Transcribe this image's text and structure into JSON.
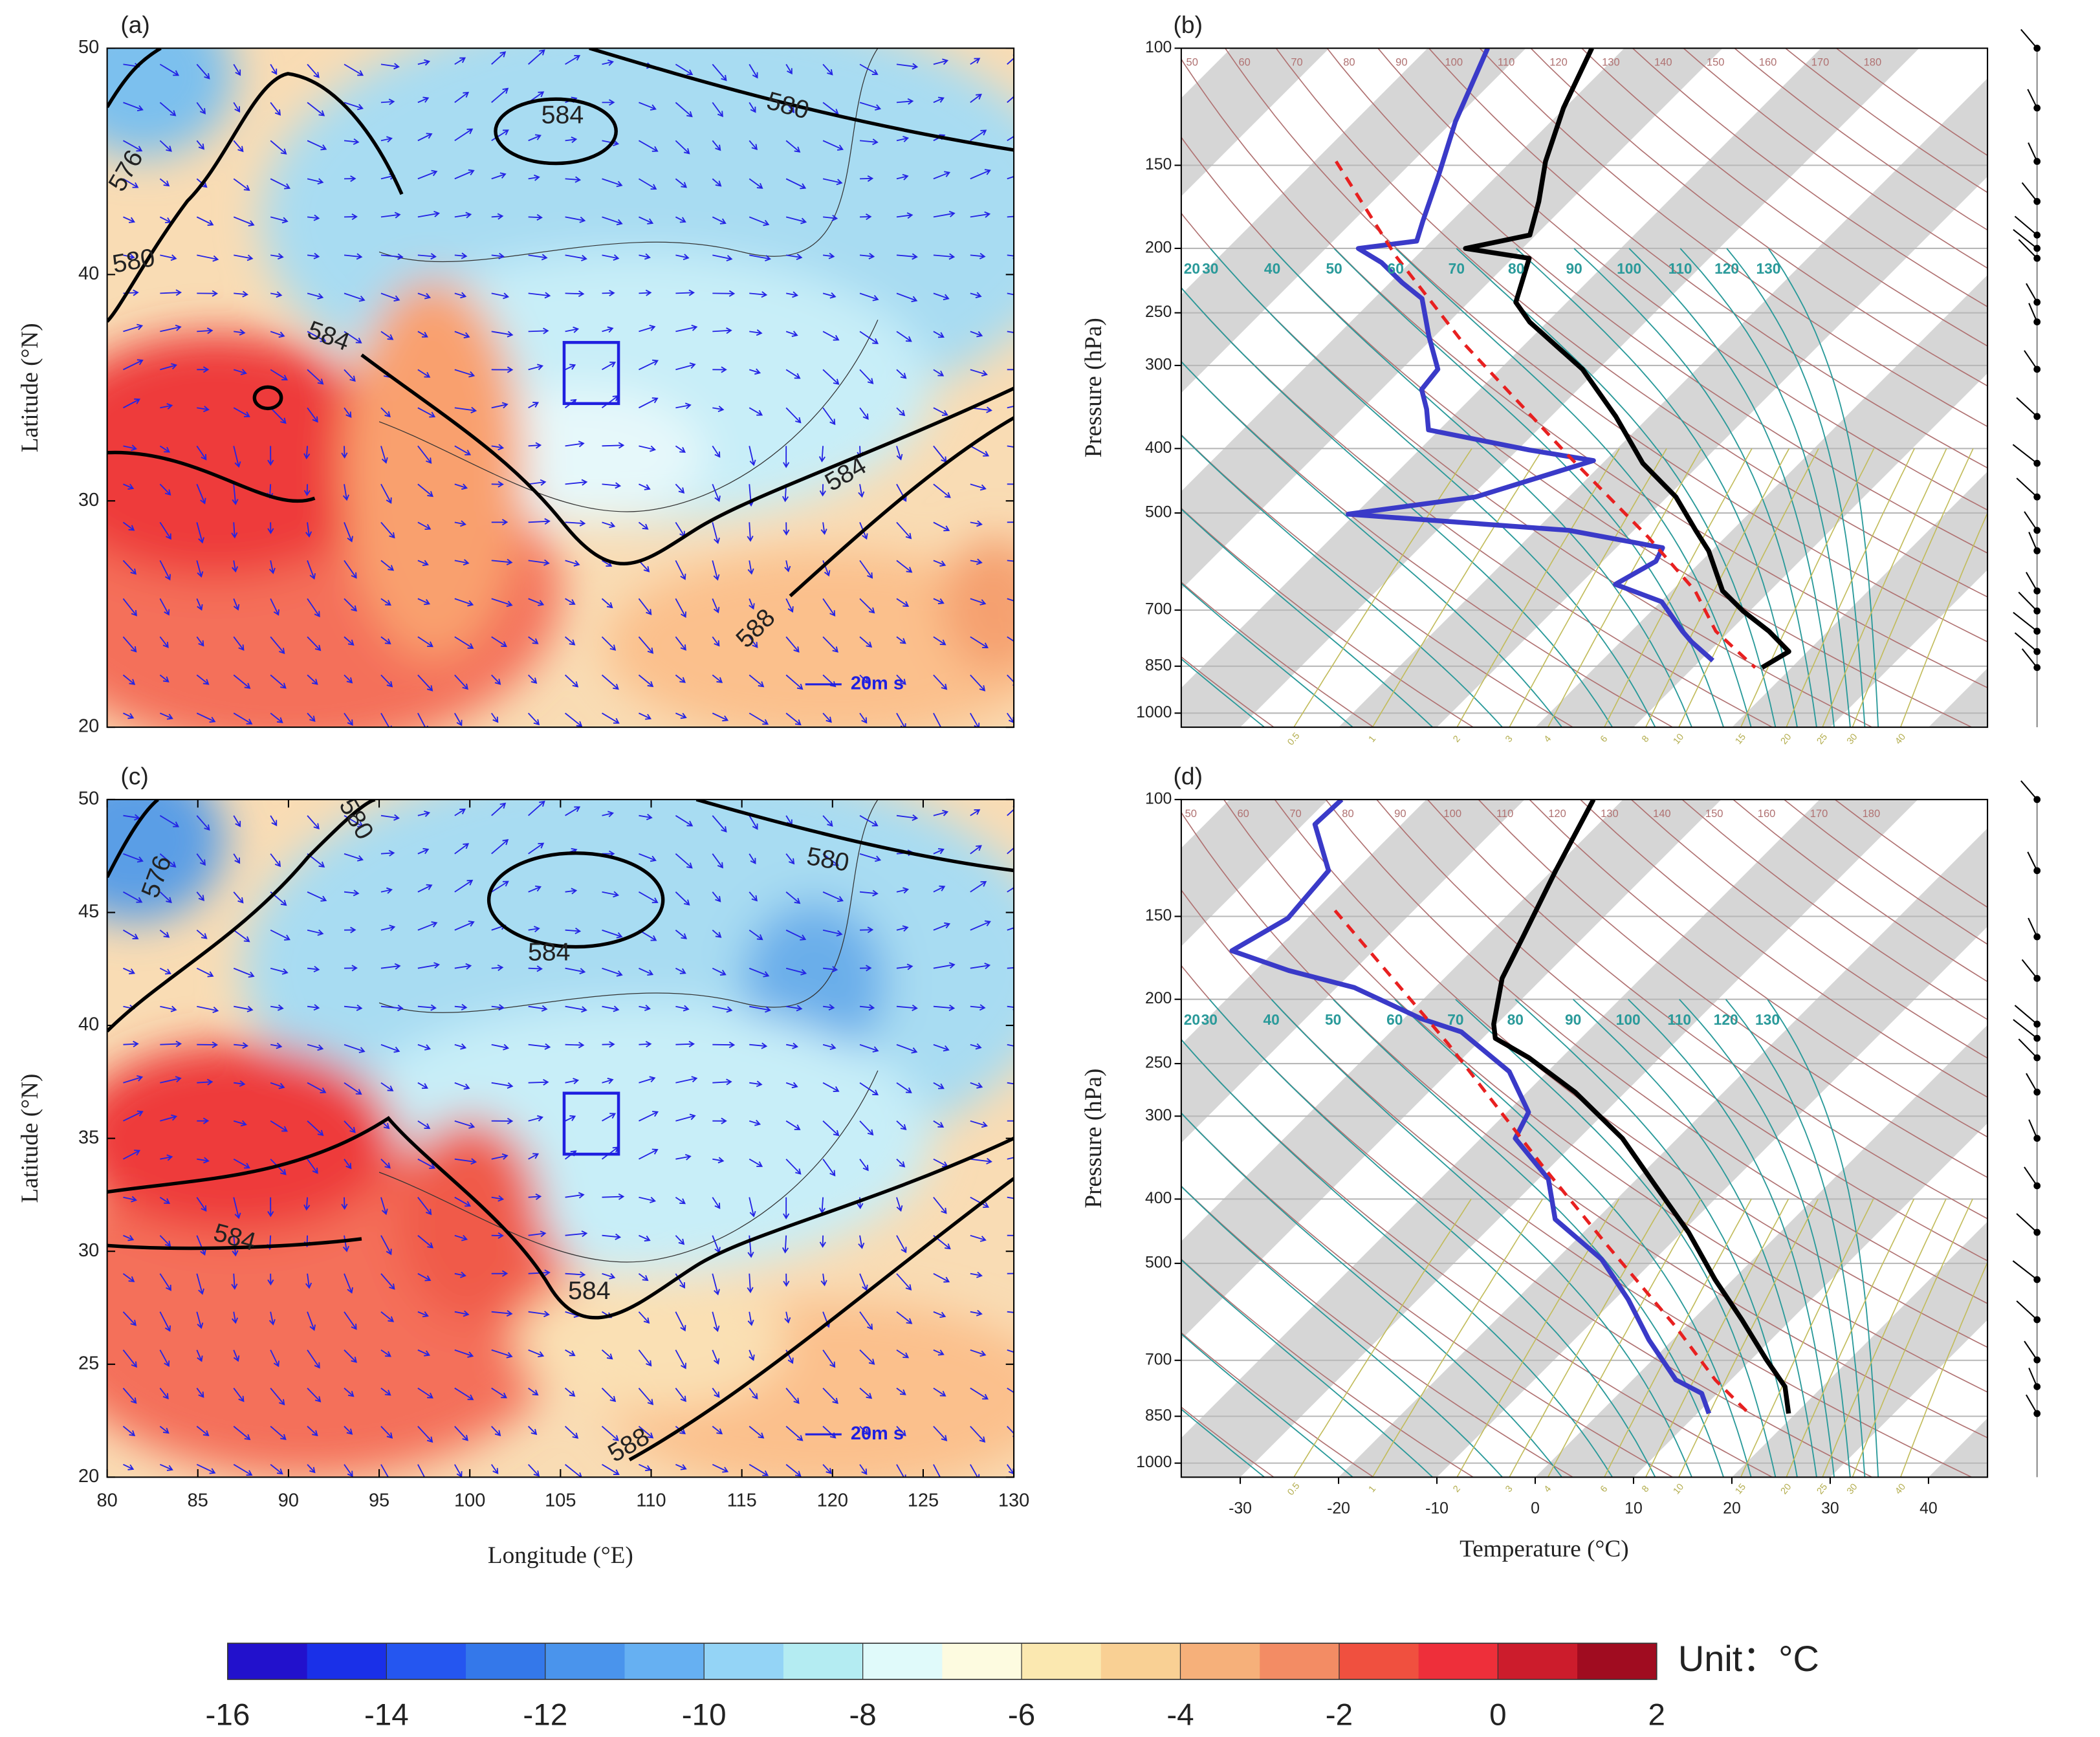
{
  "chart_data": [
    {
      "type": "map",
      "panel_label": "(a)",
      "xlim": [
        80,
        130
      ],
      "ylim": [
        20,
        50
      ],
      "yticks": [
        20,
        30,
        40,
        50
      ],
      "ylabel": "Latitude (°N)",
      "contour_labels": [
        "584",
        "580",
        "576",
        "580",
        "584",
        "584",
        "588"
      ],
      "reference_vector_label": "20m s",
      "region_box": {
        "lon": [
          105.2,
          108.2
        ],
        "lat": [
          34.3,
          37
        ]
      }
    },
    {
      "type": "skewt",
      "panel_label": "(b)",
      "log_y": true,
      "ylim": [
        1050,
        100
      ],
      "yticks": [
        100,
        150,
        200,
        250,
        300,
        400,
        500,
        700,
        850,
        1000
      ],
      "ylabel": "Pressure (hPa)",
      "xlim": [
        -36,
        46
      ],
      "dry_adiabat_labels": [
        50,
        60,
        70,
        80,
        90,
        100,
        110,
        120,
        130,
        140,
        150,
        160,
        170,
        180
      ],
      "moist_adiabat_labels": [
        20,
        30,
        40,
        50,
        60,
        70,
        80,
        90,
        100,
        110,
        120,
        130
      ],
      "mixing_ratio_labels": [
        0.5,
        1,
        2,
        3,
        4,
        6,
        8,
        10,
        15,
        20,
        25,
        30,
        40
      ],
      "series": [
        {
          "color": "#000000",
          "dash": false,
          "pressure": [
            100,
            123,
            148,
            170,
            191,
            200,
            207,
            241,
            258,
            304,
            358,
            421,
            473,
            531,
            570,
            655,
            702,
            753,
            808,
            854
          ],
          "values": [
            -63.3,
            -60.1,
            -56.5,
            -53.1,
            -50.6,
            -55.8,
            -48.3,
            -45.2,
            -41.8,
            -31.6,
            -23.4,
            -15.9,
            -9.1,
            -3.7,
            -0.3,
            5.2,
            9.3,
            14.0,
            18.1,
            17.0
          ]
        },
        {
          "color": "#3a3ac8",
          "dash": false,
          "pressure": [
            100,
            129,
            155,
            182,
            195,
            200,
            210,
            225,
            238,
            271,
            304,
            326,
            349,
            375,
            402,
            417,
            473,
            502,
            531,
            564,
            591,
            640,
            680,
            753,
            781,
            834
          ],
          "values": [
            -73.9,
            -69.7,
            -66.0,
            -62.9,
            -61.5,
            -66.7,
            -62.9,
            -58.8,
            -55.1,
            -50.6,
            -46.3,
            -45.9,
            -43.4,
            -41.1,
            -28.8,
            -21.2,
            -29.5,
            -40.7,
            -16.6,
            -5.3,
            -4.6,
            -6.4,
            0.1,
            5.2,
            7.2,
            11.3
          ]
        },
        {
          "color": "#e82020",
          "dash": true,
          "pressure": [
            148,
            205,
            277,
            411,
            544,
            655,
            753,
            854
          ],
          "values": [
            -77.8,
            -62.2,
            -46.5,
            -24.1,
            -7.8,
            2.4,
            8.6,
            16.3
          ]
        }
      ]
    },
    {
      "type": "map",
      "panel_label": "(c)",
      "xlim": [
        80,
        130
      ],
      "ylim": [
        20,
        50
      ],
      "xticks": [
        80,
        85,
        90,
        95,
        100,
        105,
        110,
        115,
        120,
        125,
        130
      ],
      "yticks": [
        20,
        25,
        30,
        35,
        40,
        45,
        50
      ],
      "xlabel": "Longitude (°E)",
      "ylabel": "Latitude (°N)",
      "contour_labels": [
        "580",
        "580",
        "584",
        "576",
        "584",
        "584",
        "588"
      ],
      "reference_vector_label": "20m s",
      "region_box": {
        "lon": [
          105.2,
          108.2
        ],
        "lat": [
          34.3,
          37
        ]
      }
    },
    {
      "type": "skewt",
      "panel_label": "(d)",
      "log_y": true,
      "ylim": [
        1050,
        100
      ],
      "yticks": [
        100,
        150,
        200,
        250,
        300,
        400,
        500,
        700,
        850,
        1000
      ],
      "ylabel": "Pressure (hPa)",
      "xlim": [
        -36,
        46
      ],
      "xticks": [
        -30,
        -20,
        -10,
        0,
        10,
        20,
        30,
        40
      ],
      "xlabel": "Temperature (°C)",
      "dry_adiabat_labels": [
        50,
        60,
        70,
        80,
        90,
        100,
        110,
        120,
        130,
        140,
        150,
        160,
        170,
        180
      ],
      "moist_adiabat_labels": [
        20,
        30,
        40,
        50,
        60,
        70,
        80,
        90,
        100,
        110,
        120,
        130
      ],
      "mixing_ratio_labels": [
        0.5,
        1,
        2,
        3,
        4,
        6,
        8,
        10,
        15,
        20,
        25,
        30,
        40
      ],
      "series": [
        {
          "color": "#000000",
          "dash": false,
          "pressure": [
            100,
            128,
            161,
            186,
            218,
            229,
            245,
            276,
            324,
            382,
            449,
            529,
            608,
            699,
            767,
            842
          ],
          "values": [
            -63.0,
            -59.6,
            -56.2,
            -54.1,
            -50.3,
            -48.7,
            -43.3,
            -35.1,
            -25.6,
            -17.4,
            -9.3,
            -1.8,
            5.0,
            11.6,
            16.2,
            19.3
          ]
        },
        {
          "color": "#3a3ac8",
          "dash": false,
          "pressure": [
            100,
            109,
            128,
            151,
            169,
            181,
            192,
            214,
            224,
            257,
            296,
            324,
            373,
            429,
            493,
            567,
            652,
            749,
            785,
            842
          ],
          "values": [
            -88.6,
            -88.8,
            -82.7,
            -82.0,
            -84.4,
            -76.6,
            -68.2,
            -58.2,
            -52.8,
            -43.9,
            -37.8,
            -36.5,
            -29.0,
            -24.2,
            -15.4,
            -8.6,
            -2.4,
            4.4,
            8.4,
            11.2
          ]
        },
        {
          "color": "#e82020",
          "dash": true,
          "pressure": [
            147,
            234,
            356,
            471,
            622,
            749,
            838
          ],
          "values": [
            -78.0,
            -52.8,
            -31.0,
            -16.1,
            -1.1,
            8.4,
            15.0
          ]
        }
      ]
    }
  ],
  "colorbar": {
    "ticks": [
      -16,
      -14,
      -12,
      -10,
      -8,
      -6,
      -4,
      -2,
      0,
      2
    ],
    "unit_label": "Unit：°C",
    "colors": [
      "#2211cc",
      "#1a30e8",
      "#2556f0",
      "#3478ea",
      "#4a94ec",
      "#66b0f2",
      "#94d4f6",
      "#b4ecf2",
      "#e0fafa",
      "#fdfbe0",
      "#fbe8b0",
      "#f9d094",
      "#f6b07a",
      "#f38c64",
      "#f0503f",
      "#ee2f3a",
      "#cc1c2c",
      "#a00c20"
    ]
  }
}
